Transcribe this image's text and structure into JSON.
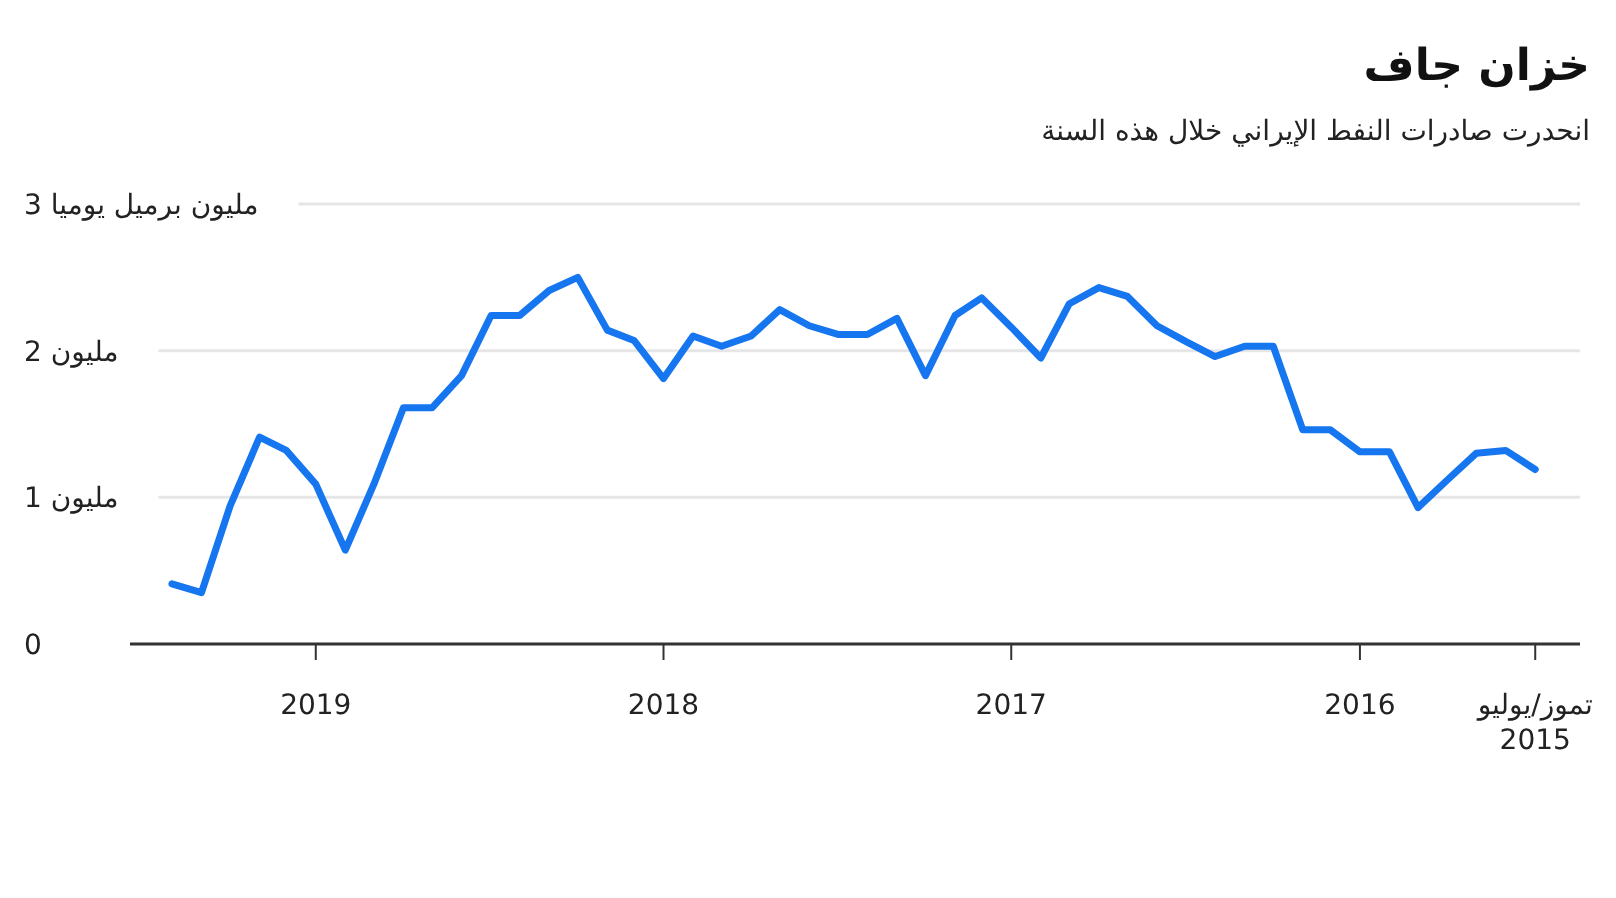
{
  "chart_data": {
    "type": "line",
    "title": "خزان جاف",
    "subtitle": "انحدرت صادرات النفط الإيراني  خلال هذه السنة",
    "x": [
      "2015-07",
      "2015-08",
      "2015-09",
      "2015-10",
      "2015-11",
      "2015-12",
      "2016-01",
      "2016-02",
      "2016-03",
      "2016-04",
      "2016-05",
      "2016-06",
      "2016-07",
      "2016-08",
      "2016-09",
      "2016-10",
      "2016-11",
      "2016-12",
      "2017-01",
      "2017-02",
      "2017-03",
      "2017-04",
      "2017-05",
      "2017-06",
      "2017-07",
      "2017-08",
      "2017-09",
      "2017-10",
      "2017-11",
      "2017-12",
      "2018-01",
      "2018-02",
      "2018-03",
      "2018-04",
      "2018-05",
      "2018-06",
      "2018-07",
      "2018-08",
      "2018-09",
      "2018-10",
      "2018-11",
      "2018-12",
      "2019-01",
      "2019-02",
      "2019-03",
      "2019-04",
      "2019-05",
      "2019-06"
    ],
    "series": [
      {
        "color": "#1576f0",
        "values": [
          1.19,
          1.32,
          1.3,
          1.12,
          0.93,
          1.31,
          1.31,
          1.46,
          1.46,
          2.03,
          2.03,
          1.96,
          2.06,
          2.17,
          2.37,
          2.43,
          2.32,
          1.95,
          2.16,
          2.36,
          2.24,
          1.83,
          2.22,
          2.11,
          2.11,
          2.17,
          2.28,
          2.1,
          2.03,
          2.1,
          1.81,
          2.07,
          2.14,
          2.5,
          2.41,
          2.24,
          2.24,
          1.83,
          1.61,
          1.61,
          1.09,
          0.64,
          1.09,
          1.32,
          1.41,
          0.94,
          0.35,
          0.41
        ]
      }
    ],
    "xlim": [
      "2019-07-15",
      "2015-05-15"
    ],
    "xticks": [
      {
        "value": "2015-07",
        "label": "تموز/يوليو\n2015"
      },
      {
        "value": "2016-01",
        "label": "2016"
      },
      {
        "value": "2017-01",
        "label": "2017"
      },
      {
        "value": "2018-01",
        "label": "2018"
      },
      {
        "value": "2019-01",
        "label": "2019"
      }
    ],
    "ylim": [
      0,
      3
    ],
    "yticks": [
      0,
      {
        "value": 1,
        "label": "1 مليون"
      },
      {
        "value": 2,
        "label": "2 مليون"
      },
      {
        "value": 3,
        "label": "3 مليون برميل يوميا"
      }
    ],
    "grid": "y",
    "marker": "none",
    "line_style": "solid"
  }
}
